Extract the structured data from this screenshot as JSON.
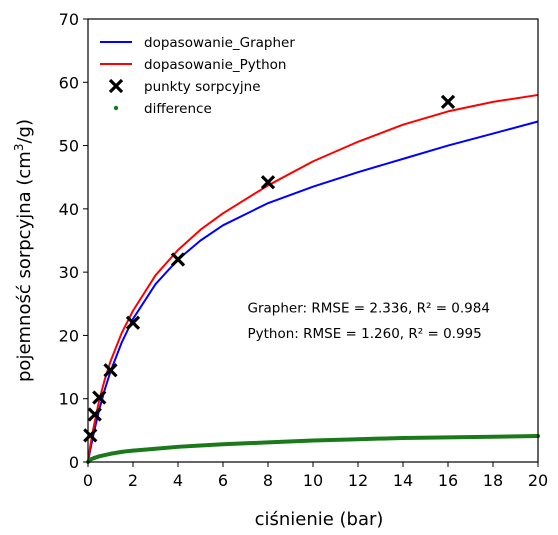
{
  "chart_data": {
    "type": "line",
    "xlabel": "ciśnienie (bar)",
    "ylabel_main": "pojemność sorpcyjna (cm",
    "ylabel_sup": "3",
    "ylabel_tail": "/g)",
    "xlim": [
      0,
      20
    ],
    "ylim": [
      0,
      70
    ],
    "xticks": [
      0,
      2,
      4,
      6,
      8,
      10,
      12,
      14,
      16,
      18,
      20
    ],
    "yticks": [
      0,
      10,
      20,
      30,
      40,
      50,
      60,
      70
    ],
    "grid": false,
    "legend_position": "top-left",
    "series": [
      {
        "name": "dopasowanie_Grapher",
        "kind": "line",
        "color": "#0000ff",
        "x": [
          0,
          0.1,
          0.25,
          0.5,
          0.75,
          1,
          1.5,
          2,
          3,
          4,
          5,
          6,
          8,
          10,
          12,
          14,
          16,
          18,
          20
        ],
        "y": [
          0,
          1.9,
          4.5,
          8.3,
          11.5,
          14.3,
          18.9,
          22.6,
          28.1,
          32.0,
          35.0,
          37.4,
          40.9,
          43.5,
          45.8,
          47.9,
          50.0,
          51.9,
          53.8
        ]
      },
      {
        "name": "dopasowanie_Python",
        "kind": "line",
        "color": "#ff0000",
        "x": [
          0,
          0.1,
          0.25,
          0.5,
          0.75,
          1,
          1.5,
          2,
          3,
          4,
          5,
          6,
          8,
          10,
          12,
          14,
          16,
          18,
          20
        ],
        "y": [
          0,
          2.5,
          5.5,
          9.8,
          13.1,
          15.9,
          20.4,
          23.9,
          29.5,
          33.5,
          36.7,
          39.3,
          43.7,
          47.5,
          50.6,
          53.3,
          55.4,
          56.9,
          58.0
        ]
      },
      {
        "name": "punkty sorpcyjne",
        "kind": "marker-x",
        "color": "#000000",
        "x": [
          0.1,
          0.3,
          0.5,
          1,
          2,
          4,
          8,
          16
        ],
        "y": [
          4.2,
          7.5,
          10.2,
          14.5,
          22.0,
          32.0,
          44.2,
          56.9
        ]
      },
      {
        "name": "difference",
        "kind": "dots",
        "color": "#1a7a1a",
        "x": [
          0,
          0.1,
          0.25,
          0.5,
          0.75,
          1,
          1.5,
          2,
          3,
          4,
          5,
          6,
          8,
          10,
          12,
          14,
          16,
          18,
          20
        ],
        "y": [
          0,
          0.4,
          0.6,
          0.9,
          1.1,
          1.3,
          1.6,
          1.8,
          2.1,
          2.4,
          2.6,
          2.8,
          3.1,
          3.4,
          3.6,
          3.8,
          3.9,
          4.0,
          4.1
        ]
      }
    ],
    "annotations": [
      {
        "text": "Grapher: RMSE = 2.336, R² = 0.984",
        "x": 7.0,
        "y": 23.6
      },
      {
        "text": "Python: RMSE = 1.260, R² = 0.995",
        "x": 7.0,
        "y": 19.6
      }
    ]
  }
}
